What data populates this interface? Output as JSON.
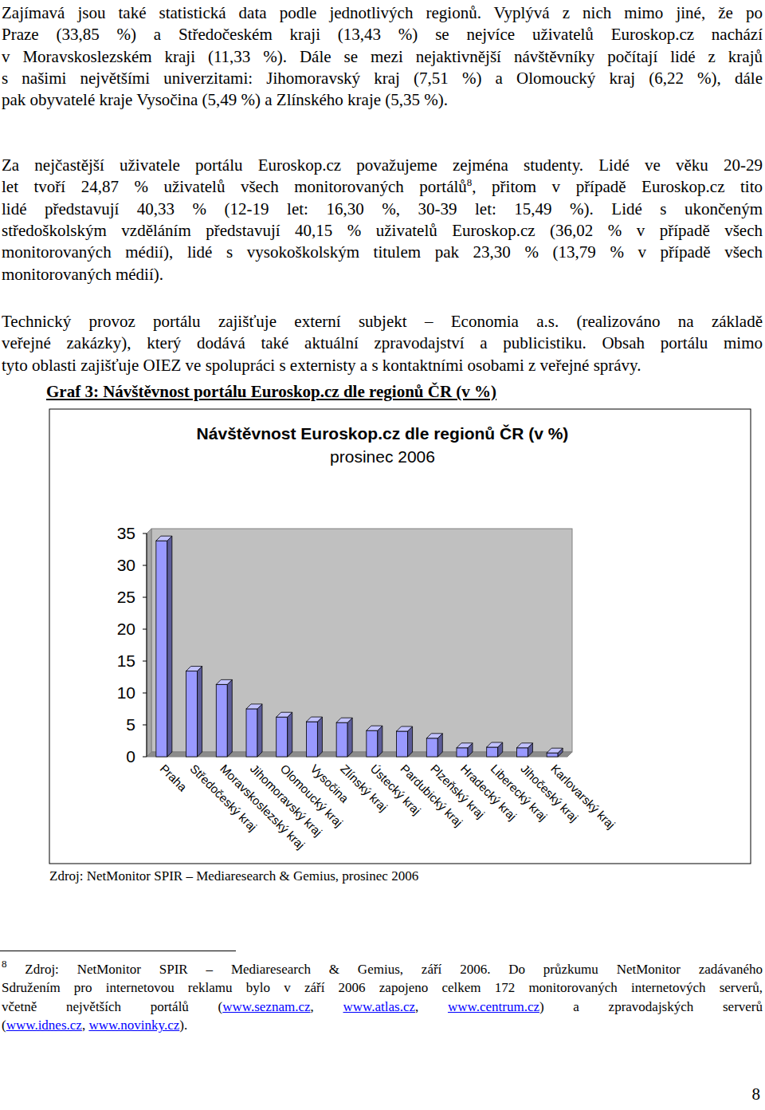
{
  "paragraphs": [
    {
      "lines": [
        [
          "Zajímavá jsou také statistická data podle jednotlivých regionů. Vyplývá z nich mimo jiné, že po"
        ],
        [
          "Praze (33,85 %) a Středočeském kraji (13,43 %) se nejvíce uživatelů Euroskop.cz nachází"
        ],
        [
          "v Moravskoslezském kraji (11,33 %). Dále se mezi nejaktivnější návštěvníky počítají lidé z krajů"
        ],
        [
          "s našimi největšími univerzitami: Jihomoravský kraj (7,51 %) a Olomoucký kraj (6,22 %), dále"
        ],
        [
          "pak obyvatelé kraje Vysočina (5,49 %) a Zlínského kraje (5,35 %)."
        ]
      ]
    },
    {
      "lines": [
        [
          "Za nejčastější uživatele portálu Euroskop.cz považujeme zejména studenty. Lidé ve věku 20-29"
        ],
        [
          "let tvoří 24,87 % uživatelů všech monitorovaných portálů",
          {
            "sup": "8"
          },
          ", přitom v případě Euroskop.cz tito"
        ],
        [
          "lidé představují 40,33 % (12-19 let: 16,30 %, 30-39 let: 15,49 %). Lidé s ukončeným"
        ],
        [
          "středoškolským vzděláním představují 40,15 % uživatelů Euroskop.cz (36,02 % v případě všech"
        ],
        [
          "monitorovaných médií), lidé s vysokoškolským titulem pak 23,30 % (13,79 % v případě všech"
        ],
        [
          "monitorovaných médií)."
        ]
      ]
    },
    {
      "lines": [
        [
          "Technický provoz portálu zajišťuje externí subjekt – Economia a.s. (realizováno na základě"
        ],
        [
          "veřejné zakázky), který dodává také aktuální zpravodajství a publicistiku. Obsah portálu mimo"
        ],
        [
          "tyto oblasti zajišťuje OIEZ ve spolupráci s externisty a s kontaktními osobami z veřejné správy."
        ]
      ]
    }
  ],
  "heading": "Graf 3: Návštěvnost portálu Euroskop.cz dle regionů ČR (v %)",
  "chart_data": {
    "type": "bar",
    "title": "Návštěvnost Euroskop.cz dle regionů ČR (v %)",
    "subtitle": "prosinec 2006",
    "categories": [
      "Praha",
      "Středočeský kraj",
      "Moravskoslezský kraj",
      "Jihomoravský kraj",
      "Olomoucký kraj",
      "Vysočina",
      "Zlínský kraj",
      "Ústecký kraj",
      "Pardubický kraj",
      "Plzeňský kraj",
      "Hradecký kraj",
      "Liberecký kraj",
      "Jihočeský kraj",
      "Karlovarský kraj"
    ],
    "values": [
      33.85,
      13.43,
      11.33,
      7.51,
      6.22,
      5.49,
      5.35,
      4.1,
      4.0,
      2.9,
      1.4,
      1.5,
      1.4,
      0.6
    ],
    "color": "#9999ff",
    "ylim": [
      0,
      35
    ],
    "yticks": [
      0,
      5,
      10,
      15,
      20,
      25,
      30,
      35
    ],
    "grid": false
  },
  "source": "Zdroj: NetMonitor SPIR – Mediaresearch & Gemius, prosinec 2006",
  "footnote": {
    "lines": [
      [
        {
          "sup": "8"
        },
        " Zdroj: NetMonitor SPIR – Mediaresearch & Gemius, září 2006. Do průzkumu NetMonitor zadávaného"
      ],
      [
        "Sdružením pro internetovou reklamu bylo v září 2006 zapojeno celkem 172 monitorovaných internetových serverů,"
      ],
      [
        "včetně největších portálů (",
        {
          "link": "www.seznam.cz"
        },
        ", ",
        {
          "link": "www.atlas.cz"
        },
        ", ",
        {
          "link": "www.centrum.cz"
        },
        ") a zpravodajských serverů"
      ],
      [
        "(",
        {
          "link": "www.idnes.cz"
        },
        ", ",
        {
          "link": "www.novinky.cz"
        },
        ")."
      ]
    ]
  },
  "page_number": "8"
}
